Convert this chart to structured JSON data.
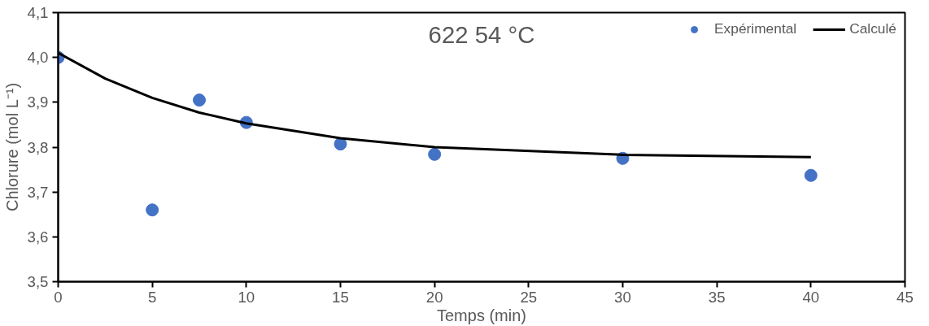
{
  "chart_data": {
    "type": "scatter",
    "title": "622 54 °C",
    "xlabel": "Temps (min)",
    "ylabel": "Chlorure (mol L⁻¹)",
    "xlim": [
      0,
      45
    ],
    "xticks": [
      0,
      5,
      10,
      15,
      20,
      25,
      30,
      35,
      40,
      45
    ],
    "ylim": [
      3.5,
      4.1
    ],
    "yticks": [
      {
        "value": 3.5,
        "label": "3,5"
      },
      {
        "value": 3.6,
        "label": "3,6"
      },
      {
        "value": 3.7,
        "label": "3,7"
      },
      {
        "value": 3.8,
        "label": "3,8"
      },
      {
        "value": 3.9,
        "label": "3,9"
      },
      {
        "value": 4.0,
        "label": "4,0"
      },
      {
        "value": 4.1,
        "label": "4,1"
      }
    ],
    "grid": false,
    "legend": "top right",
    "series": [
      {
        "name": "Expérimental",
        "marker": "circle",
        "color": "#4472c4",
        "x": [
          0,
          5,
          7.5,
          10,
          15,
          20,
          30,
          40
        ],
        "values": [
          4.0,
          3.66,
          3.905,
          3.855,
          3.807,
          3.784,
          3.775,
          3.737
        ]
      },
      {
        "name": "Calculé",
        "type": "line",
        "marker": "none",
        "line_style": "solid",
        "color": "#000000",
        "x": [
          0,
          2.5,
          5,
          7.5,
          10,
          15,
          20,
          30,
          40
        ],
        "values": [
          4.01,
          3.953,
          3.91,
          3.877,
          3.853,
          3.82,
          3.8,
          3.783,
          3.778
        ]
      }
    ]
  }
}
